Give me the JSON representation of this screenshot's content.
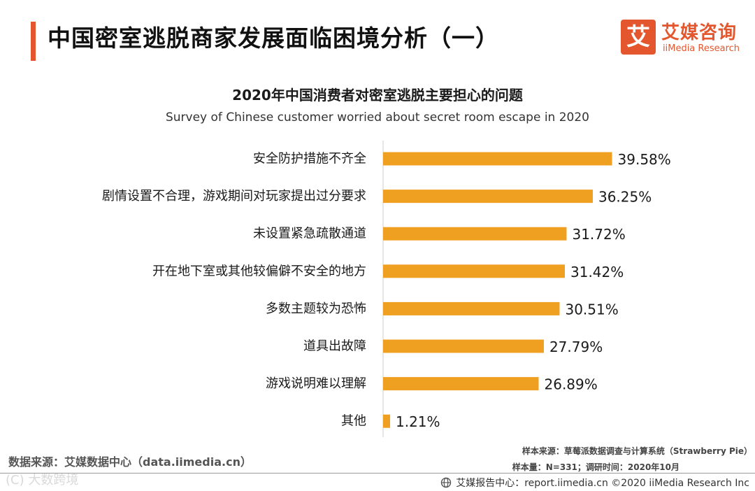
{
  "header": {
    "title": "中国密室逃脱商家发展面临困境分析（一）",
    "logo": {
      "mark": "艾",
      "name_cn": "艾媒咨询",
      "name_en": "iiMedia Research"
    }
  },
  "chart_data": {
    "type": "bar",
    "orientation": "horizontal",
    "title": "2020年中国消费者对密室逃脱主要担心的问题",
    "subtitle": "Survey of Chinese customer worried about secret room escape in 2020",
    "categories": [
      "安全防护措施不齐全",
      "剧情设置不合理，游戏期间对玩家提出过分要求",
      "未设置紧急疏散通道",
      "开在地下室或其他较偏僻不安全的地方",
      "多数主题较为恐怖",
      "道具出故障",
      "游戏说明难以理解",
      "其他"
    ],
    "values": [
      39.58,
      36.25,
      31.72,
      31.42,
      30.51,
      27.79,
      26.89,
      1.21
    ],
    "value_labels": [
      "39.58%",
      "36.25%",
      "31.72%",
      "31.42%",
      "30.51%",
      "27.79%",
      "26.89%",
      "1.21%"
    ],
    "unit": "%",
    "xlim": [
      0,
      40
    ],
    "bar_color": "#f0a020",
    "grid": false,
    "legend": "none"
  },
  "footer": {
    "data_source": "数据来源：艾媒数据中心（data.iimedia.cn）",
    "sample_source": "样本来源：草莓派数据调查与计算系统（Strawberry Pie）",
    "sample_size": "样本量：N=331；调研时间：2020年10月",
    "report_center": "艾媒报告中心：report.iimedia.cn  ©2020  iiMedia Research  Inc",
    "watermark": "(C) 大数跨境"
  },
  "colors": {
    "accent": "#e4572e",
    "bar": "#f0a020"
  }
}
